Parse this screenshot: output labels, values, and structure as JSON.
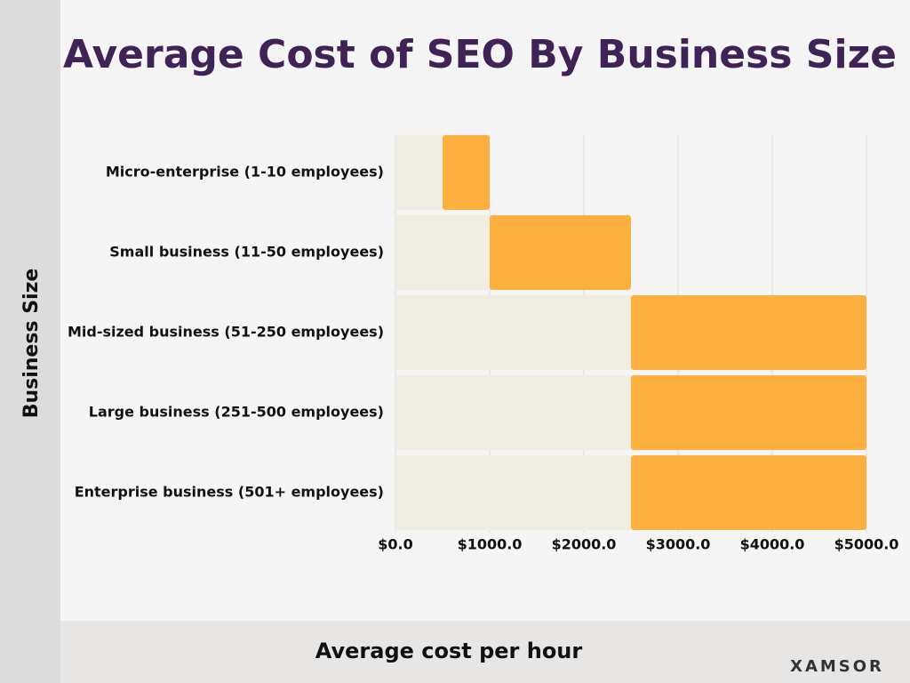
{
  "chart_data": {
    "type": "stacked_bar_horizontal",
    "title": "Average Cost of SEO By Business Size",
    "x_label": "Average cost per hour",
    "y_label": "Business Size",
    "brand": "XAMSOR",
    "categories": [
      "Micro-enterprise (1-10 employees)",
      "Small business (11-50 employees)",
      "Mid-sized business (51-250 employees)",
      "Large business (251-500 employees)",
      "Enterprise business (501+ employees)"
    ],
    "series": [
      {
        "color": "#f0ede3",
        "values": [
          500,
          1000,
          2500,
          2500,
          2500
        ]
      },
      {
        "color": "#fbb040",
        "values": [
          500,
          1500,
          2500,
          2500,
          2500
        ]
      }
    ],
    "xlim": [
      0,
      5000
    ],
    "xticks": [
      {
        "value": 0,
        "label": "$0.0"
      },
      {
        "value": 1000,
        "label": "$1000.0"
      },
      {
        "value": 2000,
        "label": "$2000.0"
      },
      {
        "value": 3000,
        "label": "$3000.0"
      },
      {
        "value": 4000,
        "label": "$4000.0"
      },
      {
        "value": 5000,
        "label": "$5000.0"
      }
    ],
    "grid": true
  }
}
